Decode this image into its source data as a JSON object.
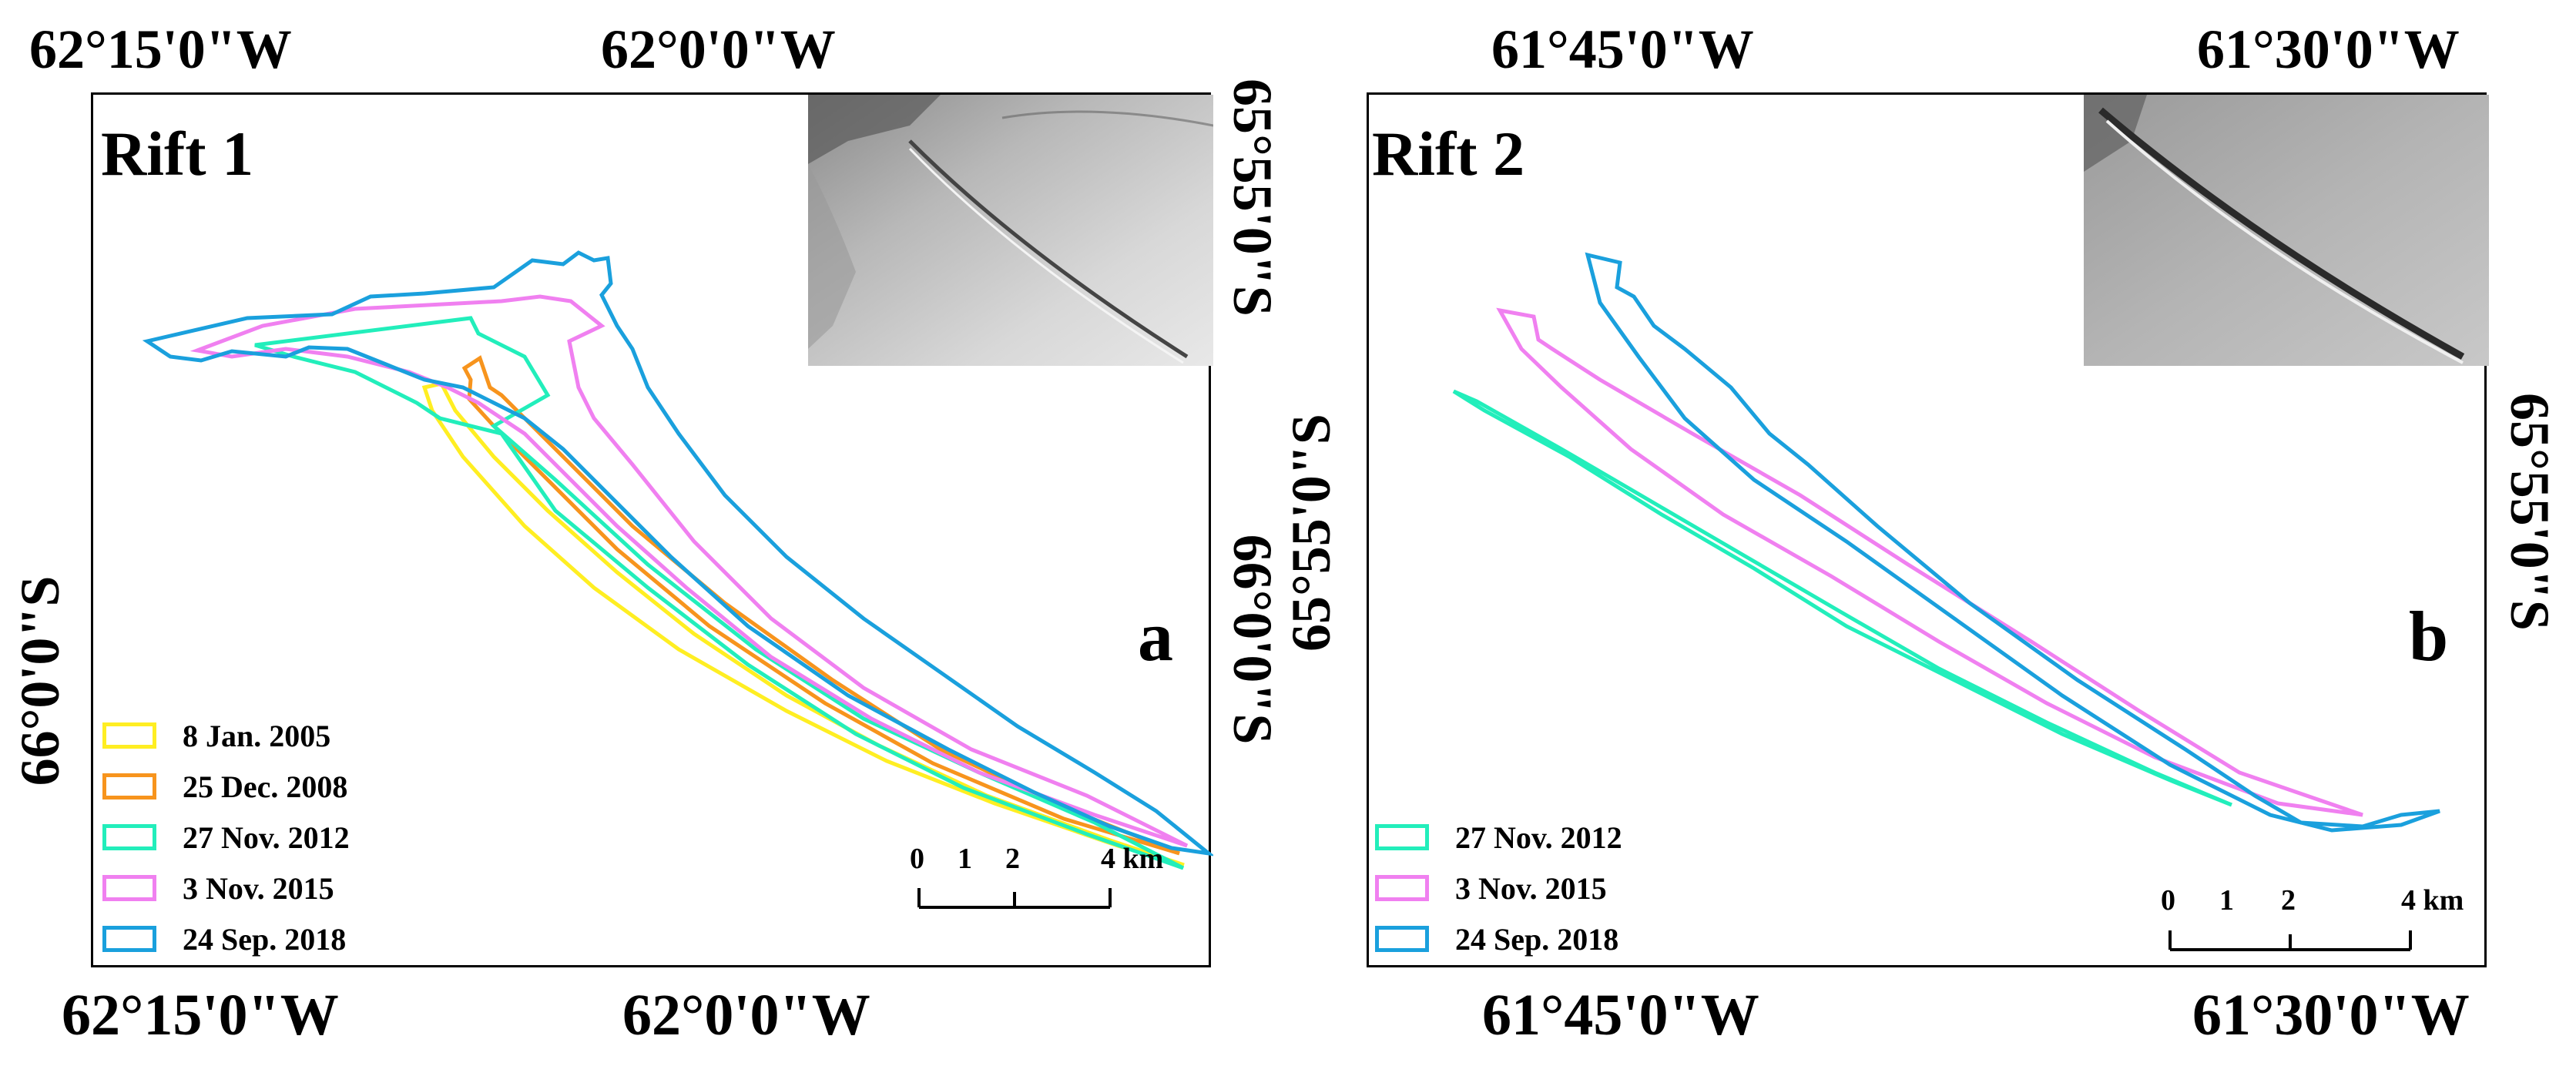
{
  "colors": {
    "yellow_2005": "#ffee22",
    "orange_2008": "#f7941d",
    "cyan_2012": "#22eebb",
    "magenta_2015": "#f080f0",
    "blue_2018": "#1aa0dd"
  },
  "panel_a": {
    "title": "Rift 1",
    "letter": "a",
    "top_lon": [
      "62°15'0\"W",
      "62°0'0\"W"
    ],
    "bottom_lon": [
      "62°15'0\"W",
      "62°0'0\"W"
    ],
    "left_lat": "66°0'0\"S",
    "right_lat": [
      "65°55'0\"S",
      "66°0'0\"S"
    ],
    "legend": [
      {
        "label": "8 Jan. 2005",
        "color": "#ffee22"
      },
      {
        "label": "25 Dec. 2008",
        "color": "#f7941d"
      },
      {
        "label": "27 Nov. 2012",
        "color": "#22eebb"
      },
      {
        "label": "3 Nov. 2015",
        "color": "#f080f0"
      },
      {
        "label": "24 Sep. 2018",
        "color": "#1aa0dd"
      }
    ],
    "scale": {
      "ticks": [
        "0",
        "1",
        "2",
        "4 km"
      ]
    }
  },
  "panel_b": {
    "title": "Rift 2",
    "letter": "b",
    "top_lon": [
      "61°45'0\"W",
      "61°30'0\"W"
    ],
    "bottom_lon": [
      "61°45'0\"W",
      "61°30'0\"W"
    ],
    "left_lat": [
      "65°55'0\"S"
    ],
    "right_lat": [
      "65°55'0\"S"
    ],
    "legend": [
      {
        "label": "27 Nov. 2012",
        "color": "#22eebb"
      },
      {
        "label": "3 Nov. 2015",
        "color": "#f080f0"
      },
      {
        "label": "24 Sep. 2018",
        "color": "#1aa0dd"
      }
    ],
    "scale": {
      "ticks": [
        "0",
        "1",
        "2",
        "4 km"
      ]
    }
  }
}
